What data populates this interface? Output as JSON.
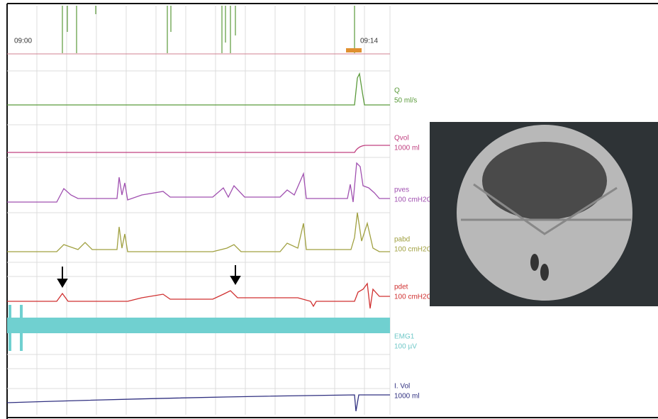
{
  "timeline": {
    "start": "09:00",
    "end": "09:14"
  },
  "channels": [
    {
      "name": "Q",
      "range": "50 ml/s"
    },
    {
      "name": "Qvol",
      "range": "1000 ml"
    },
    {
      "name": "pves",
      "range": "100 cmH2O"
    },
    {
      "name": "pabd",
      "range": "100 cmH2O"
    },
    {
      "name": "pdet",
      "range": "100 cmH2O"
    },
    {
      "name": "EMG1",
      "range": "100 µV"
    },
    {
      "name": "I. Vol",
      "range": "1000 ml"
    }
  ]
}
